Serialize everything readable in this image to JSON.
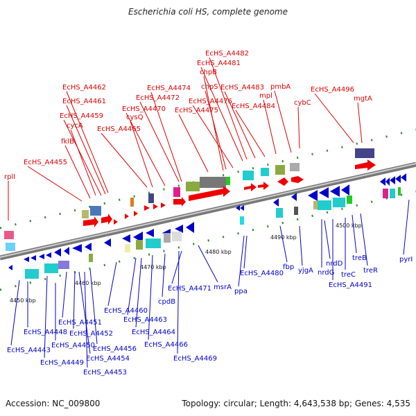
{
  "title": "Escherichia coli HS, complete genome",
  "footer": {
    "accession": "Accession: NC_009800",
    "topology": "Topology: circular; Length: 4,643,538 bp; Genes: 4,535"
  },
  "colors": {
    "forward_label": "#dd0000",
    "reverse_label": "#0000cc",
    "backbone": "#888888"
  },
  "ticks": [
    "4450 kbp",
    "4460 kbp",
    "4470 kbp",
    "4480 kbp",
    "4490 kbp",
    "4500 kbp"
  ],
  "forward_genes": [
    "rplI",
    "EcHS_A4455",
    "fklB",
    "cycA",
    "EcHS_A4459",
    "EcHS_A4461",
    "EcHS_A4462",
    "EcHS_A4465",
    "cysQ",
    "EcHS_A4470",
    "EcHS_A4472",
    "EcHS_A4474",
    "EcHS_A4475",
    "chpS",
    "chpB",
    "EcHS_A4476",
    "EcHS_A4481",
    "EcHS_A4482",
    "EcHS_A4483",
    "EcHS_A4484",
    "mpl",
    "pmbA",
    "cybC",
    "EcHS_A4496",
    "mgtA"
  ],
  "reverse_genes": [
    "EcHS_A4443",
    "EcHS_A4448",
    "EcHS_A4449",
    "EcHS_A4450",
    "EcHS_A4451",
    "EcHS_A4452",
    "EcHS_A4453",
    "EcHS_A4454",
    "EcHS_A4456",
    "EcHS_A4460",
    "EcHS_A4463",
    "EcHS_A4464",
    "EcHS_A4466",
    "cpdB",
    "EcHS_A4469",
    "EcHS_A4471",
    "msrA",
    "ppa",
    "EcHS_A4480",
    "fbp",
    "yjgA",
    "nrdG",
    "nrdD",
    "EcHS_A4491",
    "treC",
    "treB",
    "treR",
    "pyrI"
  ]
}
